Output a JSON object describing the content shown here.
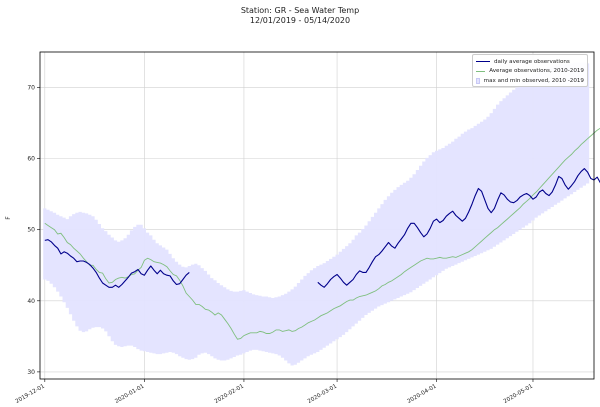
{
  "title_line1": "Station: GR - Sea Water Temp",
  "title_line2": "12/01/2019 - 05/14/2020",
  "chart_data": {
    "type": "line",
    "title": "Station: GR - Sea Water Temp",
    "subtitle": "12/01/2019 - 05/14/2020",
    "xlabel": "",
    "ylabel": "F",
    "xlim_days": [
      -1.5,
      171
    ],
    "ylim": [
      29,
      75
    ],
    "grid": true,
    "legend_position": "top-right",
    "x_ticks": [
      {
        "day": 0,
        "label": "2019-12-01"
      },
      {
        "day": 31,
        "label": "2020-01-01"
      },
      {
        "day": 62,
        "label": "2020-02-01"
      },
      {
        "day": 91,
        "label": "2020-03-01"
      },
      {
        "day": 122,
        "label": "2020-04-01"
      },
      {
        "day": 152,
        "label": "2020-05-01"
      }
    ],
    "y_ticks": [
      30,
      40,
      50,
      60,
      70
    ],
    "series": [
      {
        "name": "daily average observations",
        "color": "#00008b",
        "segments": [
          {
            "start_day": 0,
            "values": [
              48.5,
              48.6,
              48.3,
              47.8,
              47.4,
              46.6,
              46.9,
              46.7,
              46.3,
              46.0,
              45.5,
              45.6,
              45.6,
              45.4,
              45.1,
              44.6,
              44.0,
              43.2,
              42.5,
              42.2,
              41.9,
              41.9,
              42.2,
              41.9,
              42.3,
              42.8,
              43.3,
              43.9,
              44.1,
              44.4,
              43.8,
              43.6,
              44.3,
              44.9,
              44.3,
              43.8,
              44.3,
              43.8,
              43.6,
              43.5,
              42.8,
              42.3,
              42.4,
              43.0,
              43.6,
              44.0
            ]
          },
          {
            "start_day": 85,
            "values": [
              42.6,
              42.2,
              41.9,
              42.4,
              43.0,
              43.4,
              43.7,
              43.2,
              42.6,
              42.2,
              42.6,
              43.0,
              43.7,
              44.2,
              44.0,
              44.0,
              44.7,
              45.5,
              46.2,
              46.5,
              47.0,
              47.6,
              48.2,
              47.7,
              47.4,
              48.1,
              48.7,
              49.3,
              50.2,
              50.9,
              50.9,
              50.3,
              49.6,
              49.0,
              49.4,
              50.2,
              51.2,
              51.5,
              51.0,
              51.3,
              51.9,
              52.3,
              52.6,
              52.0,
              51.6,
              51.2,
              51.6,
              52.5,
              53.6,
              54.8,
              55.8,
              55.4,
              54.2,
              53.0,
              52.4,
              53.0,
              54.2,
              55.2,
              54.9,
              54.3,
              53.9,
              53.8,
              54.1,
              54.6,
              54.9,
              55.1,
              54.8,
              54.3,
              54.6,
              55.3,
              55.6,
              55.1,
              54.8,
              55.3,
              56.3,
              57.5,
              57.2,
              56.3,
              55.7,
              56.2,
              56.8,
              57.6,
              58.2,
              58.6,
              58.1,
              57.2,
              57.0,
              57.4,
              56.6,
              55.9,
              55.7,
              55.8,
              56.0,
              56.4
            ]
          }
        ]
      },
      {
        "name": "Average observations, 2010-2019",
        "color": "#7fbf7f",
        "start_day": 0,
        "values": [
          50.9,
          50.6,
          50.3,
          50.0,
          49.4,
          49.5,
          48.9,
          48.2,
          47.9,
          47.4,
          47.0,
          46.6,
          46.0,
          45.5,
          45.0,
          45.0,
          44.4,
          44.0,
          43.9,
          43.1,
          42.5,
          42.6,
          43.0,
          43.2,
          43.3,
          43.2,
          43.4,
          43.7,
          43.8,
          44.3,
          44.7,
          45.7,
          46.0,
          45.8,
          45.5,
          45.4,
          45.3,
          45.1,
          44.8,
          44.2,
          43.7,
          43.5,
          42.9,
          42.1,
          41.1,
          40.6,
          40.1,
          39.5,
          39.5,
          39.2,
          38.8,
          38.7,
          38.4,
          38.0,
          38.3,
          38.0,
          37.4,
          36.8,
          36.1,
          35.3,
          34.6,
          34.7,
          35.1,
          35.3,
          35.5,
          35.5,
          35.5,
          35.7,
          35.6,
          35.4,
          35.4,
          35.6,
          35.9,
          35.9,
          35.7,
          35.8,
          35.9,
          35.7,
          35.8,
          36.1,
          36.3,
          36.6,
          36.9,
          37.1,
          37.3,
          37.6,
          37.9,
          38.1,
          38.3,
          38.6,
          38.9,
          39.1,
          39.3,
          39.6,
          39.9,
          40.1,
          40.1,
          40.4,
          40.6,
          40.7,
          40.8,
          41.0,
          41.2,
          41.4,
          41.7,
          42.1,
          42.3,
          42.6,
          42.8,
          43.1,
          43.4,
          43.7,
          44.1,
          44.4,
          44.7,
          45.0,
          45.3,
          45.6,
          45.8,
          46.0,
          45.9,
          45.9,
          46.0,
          46.1,
          46.0,
          46.0,
          46.1,
          46.2,
          46.1,
          46.3,
          46.5,
          46.7,
          46.9,
          47.2,
          47.6,
          48.0,
          48.4,
          48.8,
          49.2,
          49.6,
          50.0,
          50.3,
          50.7,
          51.1,
          51.5,
          51.9,
          52.3,
          52.7,
          53.1,
          53.6,
          54.0,
          54.4,
          54.9,
          55.3,
          55.8,
          56.3,
          56.8,
          57.3,
          57.8,
          58.3,
          58.8,
          59.3,
          59.8,
          60.2,
          60.6,
          61.1,
          61.5,
          62.0,
          62.4,
          62.8,
          63.2,
          63.6,
          64.0,
          64.3,
          64.4,
          64.3,
          64.1
        ]
      },
      {
        "name": "max and min observed, 2010 -2019",
        "color": "#e3e3ff",
        "start_day": 0,
        "max": [
          53.0,
          52.8,
          52.6,
          52.4,
          52.1,
          51.9,
          51.7,
          51.5,
          51.9,
          52.2,
          52.4,
          52.5,
          52.4,
          52.3,
          52.1,
          51.9,
          51.4,
          50.8,
          50.2,
          49.8,
          49.3,
          48.9,
          48.5,
          48.3,
          48.5,
          48.8,
          49.3,
          49.9,
          50.4,
          50.7,
          50.7,
          50.2,
          49.6,
          49.2,
          48.6,
          48.1,
          47.8,
          47.5,
          47.2,
          46.6,
          46.0,
          45.5,
          45.1,
          44.8,
          44.7,
          44.9,
          45.1,
          45.2,
          45.0,
          44.6,
          44.2,
          43.7,
          43.2,
          42.9,
          42.5,
          42.2,
          41.9,
          41.6,
          41.4,
          41.3,
          41.3,
          41.4,
          41.5,
          41.3,
          41.1,
          40.9,
          40.8,
          40.7,
          40.6,
          40.6,
          40.5,
          40.4,
          40.5,
          40.6,
          40.8,
          41.0,
          41.3,
          41.6,
          42.0,
          42.5,
          43.0,
          43.5,
          43.9,
          44.3,
          44.6,
          44.9,
          45.1,
          45.3,
          45.6,
          45.9,
          46.2,
          46.5,
          46.9,
          47.3,
          47.7,
          48.1,
          48.6,
          49.2,
          49.6,
          50.1,
          50.6,
          51.2,
          51.8,
          52.4,
          53.0,
          53.6,
          54.2,
          54.7,
          55.2,
          55.6,
          56.0,
          56.3,
          56.6,
          56.9,
          57.3,
          57.8,
          58.4,
          59.0,
          59.6,
          60.1,
          60.5,
          60.9,
          61.1,
          61.3,
          61.5,
          61.8,
          62.1,
          62.4,
          62.8,
          63.1,
          63.5,
          63.8,
          64.1,
          64.3,
          64.6,
          64.9,
          65.2,
          65.5,
          65.9,
          66.4,
          67.0,
          67.6,
          68.1,
          68.5,
          68.9,
          69.3,
          69.7,
          70.0,
          70.4,
          70.8,
          71.2,
          71.5,
          71.8,
          72.0,
          72.3,
          72.5,
          72.7,
          72.9,
          73.0,
          73.1,
          73.2,
          73.3,
          73.3,
          73.4,
          73.4,
          73.5,
          73.5,
          73.5,
          73.5,
          73.4
        ],
        "min": [
          43.0,
          42.8,
          42.4,
          41.9,
          41.3,
          40.6,
          39.8,
          39.0,
          38.1,
          37.2,
          36.4,
          35.8,
          35.6,
          35.7,
          36.0,
          36.2,
          36.3,
          36.3,
          36.1,
          35.7,
          35.0,
          34.3,
          33.8,
          33.6,
          33.5,
          33.6,
          33.7,
          33.7,
          33.5,
          33.2,
          33.0,
          32.9,
          32.8,
          32.7,
          32.6,
          32.5,
          32.5,
          32.6,
          32.7,
          32.8,
          32.7,
          32.5,
          32.2,
          32.0,
          31.8,
          31.7,
          31.8,
          32.0,
          32.4,
          32.6,
          32.7,
          32.5,
          32.2,
          31.9,
          31.7,
          31.6,
          31.6,
          31.7,
          31.9,
          32.1,
          32.3,
          32.4,
          32.6,
          32.8,
          33.0,
          33.1,
          33.1,
          33.0,
          32.9,
          32.8,
          32.7,
          32.6,
          32.5,
          32.3,
          32.0,
          31.6,
          31.2,
          30.9,
          31.0,
          31.3,
          31.6,
          31.9,
          32.2,
          32.4,
          32.6,
          32.8,
          33.1,
          33.4,
          33.7,
          34.0,
          34.3,
          34.6,
          34.9,
          35.2,
          35.6,
          36.0,
          36.4,
          36.8,
          37.2,
          37.6,
          38.0,
          38.3,
          38.6,
          38.9,
          39.2,
          39.4,
          39.6,
          39.8,
          40.0,
          40.2,
          40.4,
          40.6,
          40.8,
          41.0,
          41.2,
          41.5,
          41.8,
          42.1,
          42.4,
          42.7,
          43.0,
          43.3,
          43.6,
          43.9,
          44.2,
          44.5,
          44.7,
          44.9,
          45.1,
          45.3,
          45.5,
          45.7,
          45.9,
          46.1,
          46.3,
          46.5,
          46.7,
          46.9,
          47.1,
          47.3,
          47.6,
          47.9,
          48.2,
          48.5,
          48.8,
          49.1,
          49.4,
          49.7,
          50.0,
          50.3,
          50.6,
          50.9,
          51.3,
          51.7,
          52.0,
          52.3,
          52.6,
          52.9,
          53.2,
          53.5,
          53.8,
          54.1,
          54.4,
          54.7,
          55.0,
          55.3,
          55.6,
          55.9,
          56.2,
          56.5
        ]
      }
    ]
  }
}
